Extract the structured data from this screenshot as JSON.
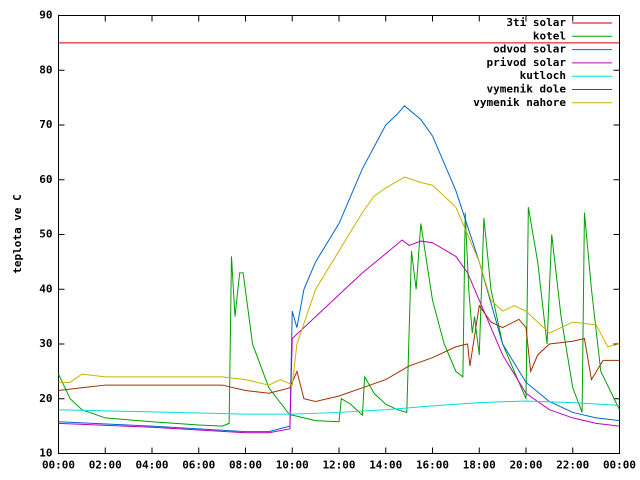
{
  "chart_data": {
    "type": "line",
    "ylabel": "teplota ve C",
    "xlim": [
      0,
      24
    ],
    "ylim": [
      10,
      90
    ],
    "xticks": [
      {
        "value": 0,
        "label": "00:00"
      },
      {
        "value": 2,
        "label": "02:00"
      },
      {
        "value": 4,
        "label": "04:00"
      },
      {
        "value": 6,
        "label": "06:00"
      },
      {
        "value": 8,
        "label": "08:00"
      },
      {
        "value": 10,
        "label": "10:00"
      },
      {
        "value": 12,
        "label": "12:00"
      },
      {
        "value": 14,
        "label": "14:00"
      },
      {
        "value": 16,
        "label": "16:00"
      },
      {
        "value": 18,
        "label": "18:00"
      },
      {
        "value": 20,
        "label": "20:00"
      },
      {
        "value": 22,
        "label": "22:00"
      },
      {
        "value": 24,
        "label": "00:00"
      }
    ],
    "yticks": [
      10,
      20,
      30,
      40,
      50,
      60,
      70,
      80,
      90
    ],
    "legend": "top-right",
    "series": [
      {
        "name": "3ti solar",
        "color": "#c80000",
        "x": [
          0,
          24
        ],
        "values": [
          85,
          85
        ]
      },
      {
        "name": "kotel",
        "color": "#00a000",
        "x": [
          0,
          0.5,
          1,
          2,
          4,
          6,
          7,
          7.3,
          7.4,
          7.55,
          7.75,
          7.9,
          8.3,
          9,
          9.9,
          10,
          11,
          12,
          12.1,
          12.5,
          13,
          13.1,
          13.5,
          14,
          14.5,
          14.9,
          15.1,
          15.3,
          15.5,
          16,
          16.5,
          17,
          17.3,
          17.4,
          17.55,
          17.7,
          17.8,
          18,
          18.2,
          18.5,
          19,
          19.5,
          20,
          20.1,
          20.5,
          20.9,
          21.1,
          21.5,
          22,
          22.4,
          22.5,
          22.8,
          23.2,
          24
        ],
        "values": [
          24.5,
          20,
          18,
          16.5,
          15.8,
          15.2,
          15,
          15.5,
          46,
          35,
          43,
          43,
          30,
          22,
          17,
          17,
          16,
          15.8,
          20,
          19,
          17,
          24,
          21,
          19,
          18,
          17.5,
          47,
          40,
          52,
          38,
          30,
          25,
          24,
          54,
          40,
          32,
          35,
          28,
          53,
          40,
          30,
          25,
          20,
          55,
          45,
          30,
          50,
          35,
          22,
          17.5,
          54,
          40,
          25,
          18
        ]
      },
      {
        "name": "odvod solar",
        "color": "#0066cc",
        "x": [
          0,
          4,
          8,
          9,
          9.9,
          10,
          10.2,
          10.5,
          11,
          12,
          13,
          14,
          14.5,
          14.8,
          15.5,
          16,
          17,
          18,
          19,
          20,
          21,
          22,
          23,
          24
        ],
        "values": [
          15.8,
          15,
          14,
          14,
          15,
          36,
          33,
          40,
          45,
          52,
          62,
          70,
          72,
          73.5,
          71,
          68,
          58,
          45,
          30,
          23,
          19.5,
          17.5,
          16.5,
          16
        ]
      },
      {
        "name": "privod solar",
        "color": "#c000c0",
        "x": [
          0,
          4,
          8,
          9,
          9.9,
          10,
          10.5,
          11,
          12,
          13,
          14,
          14.7,
          15,
          15.5,
          16,
          17,
          17.5,
          18,
          19,
          20,
          21,
          22,
          23,
          24
        ],
        "values": [
          15.5,
          14.8,
          13.8,
          13.8,
          14.5,
          31,
          33,
          35,
          39,
          43,
          46.5,
          49,
          48,
          48.8,
          48.5,
          46,
          43,
          38,
          28,
          21,
          18,
          16.5,
          15.5,
          15
        ]
      },
      {
        "name": "kutloch",
        "color": "#00dede",
        "x": [
          0,
          4,
          8,
          10,
          12,
          14,
          16,
          18,
          20,
          22,
          24
        ],
        "values": [
          18,
          17.6,
          17.2,
          17.2,
          17.5,
          18,
          18.7,
          19.3,
          19.6,
          19.3,
          18.8
        ]
      },
      {
        "name": "vymenik dole",
        "color": "#a03000",
        "x": [
          0,
          1,
          2,
          7,
          8,
          9,
          9.9,
          10.2,
          10.5,
          11,
          12,
          13,
          14,
          15,
          16,
          17,
          17.5,
          17.6,
          18,
          18.5,
          19,
          19.7,
          20,
          20.2,
          20.5,
          21,
          22,
          22.5,
          22.8,
          23.3,
          24
        ],
        "values": [
          21.5,
          22,
          22.5,
          22.5,
          21.5,
          21,
          22,
          25,
          20,
          19.5,
          20.5,
          22,
          23.5,
          26,
          27.5,
          29.5,
          30,
          26,
          37,
          34,
          33,
          34.5,
          33,
          25,
          28,
          30,
          30.5,
          31,
          23.5,
          27,
          27
        ]
      },
      {
        "name": "vymenik nahore",
        "color": "#c8b400",
        "x": [
          0,
          0.5,
          1,
          2,
          7,
          8,
          9,
          9.5,
          10,
          10.2,
          11,
          12,
          13,
          13.5,
          14,
          14.8,
          15.5,
          16,
          17,
          17.5,
          18,
          18.5,
          19,
          19.5,
          20,
          21,
          22,
          23,
          23.5,
          24
        ],
        "values": [
          23,
          23,
          24.5,
          24,
          24,
          23.5,
          22.5,
          23.5,
          22.5,
          30,
          40,
          47,
          54,
          57,
          58.5,
          60.5,
          59.5,
          59,
          55,
          50,
          45,
          38,
          36,
          37,
          36,
          32,
          34,
          33.5,
          29.5,
          30
        ]
      }
    ]
  }
}
